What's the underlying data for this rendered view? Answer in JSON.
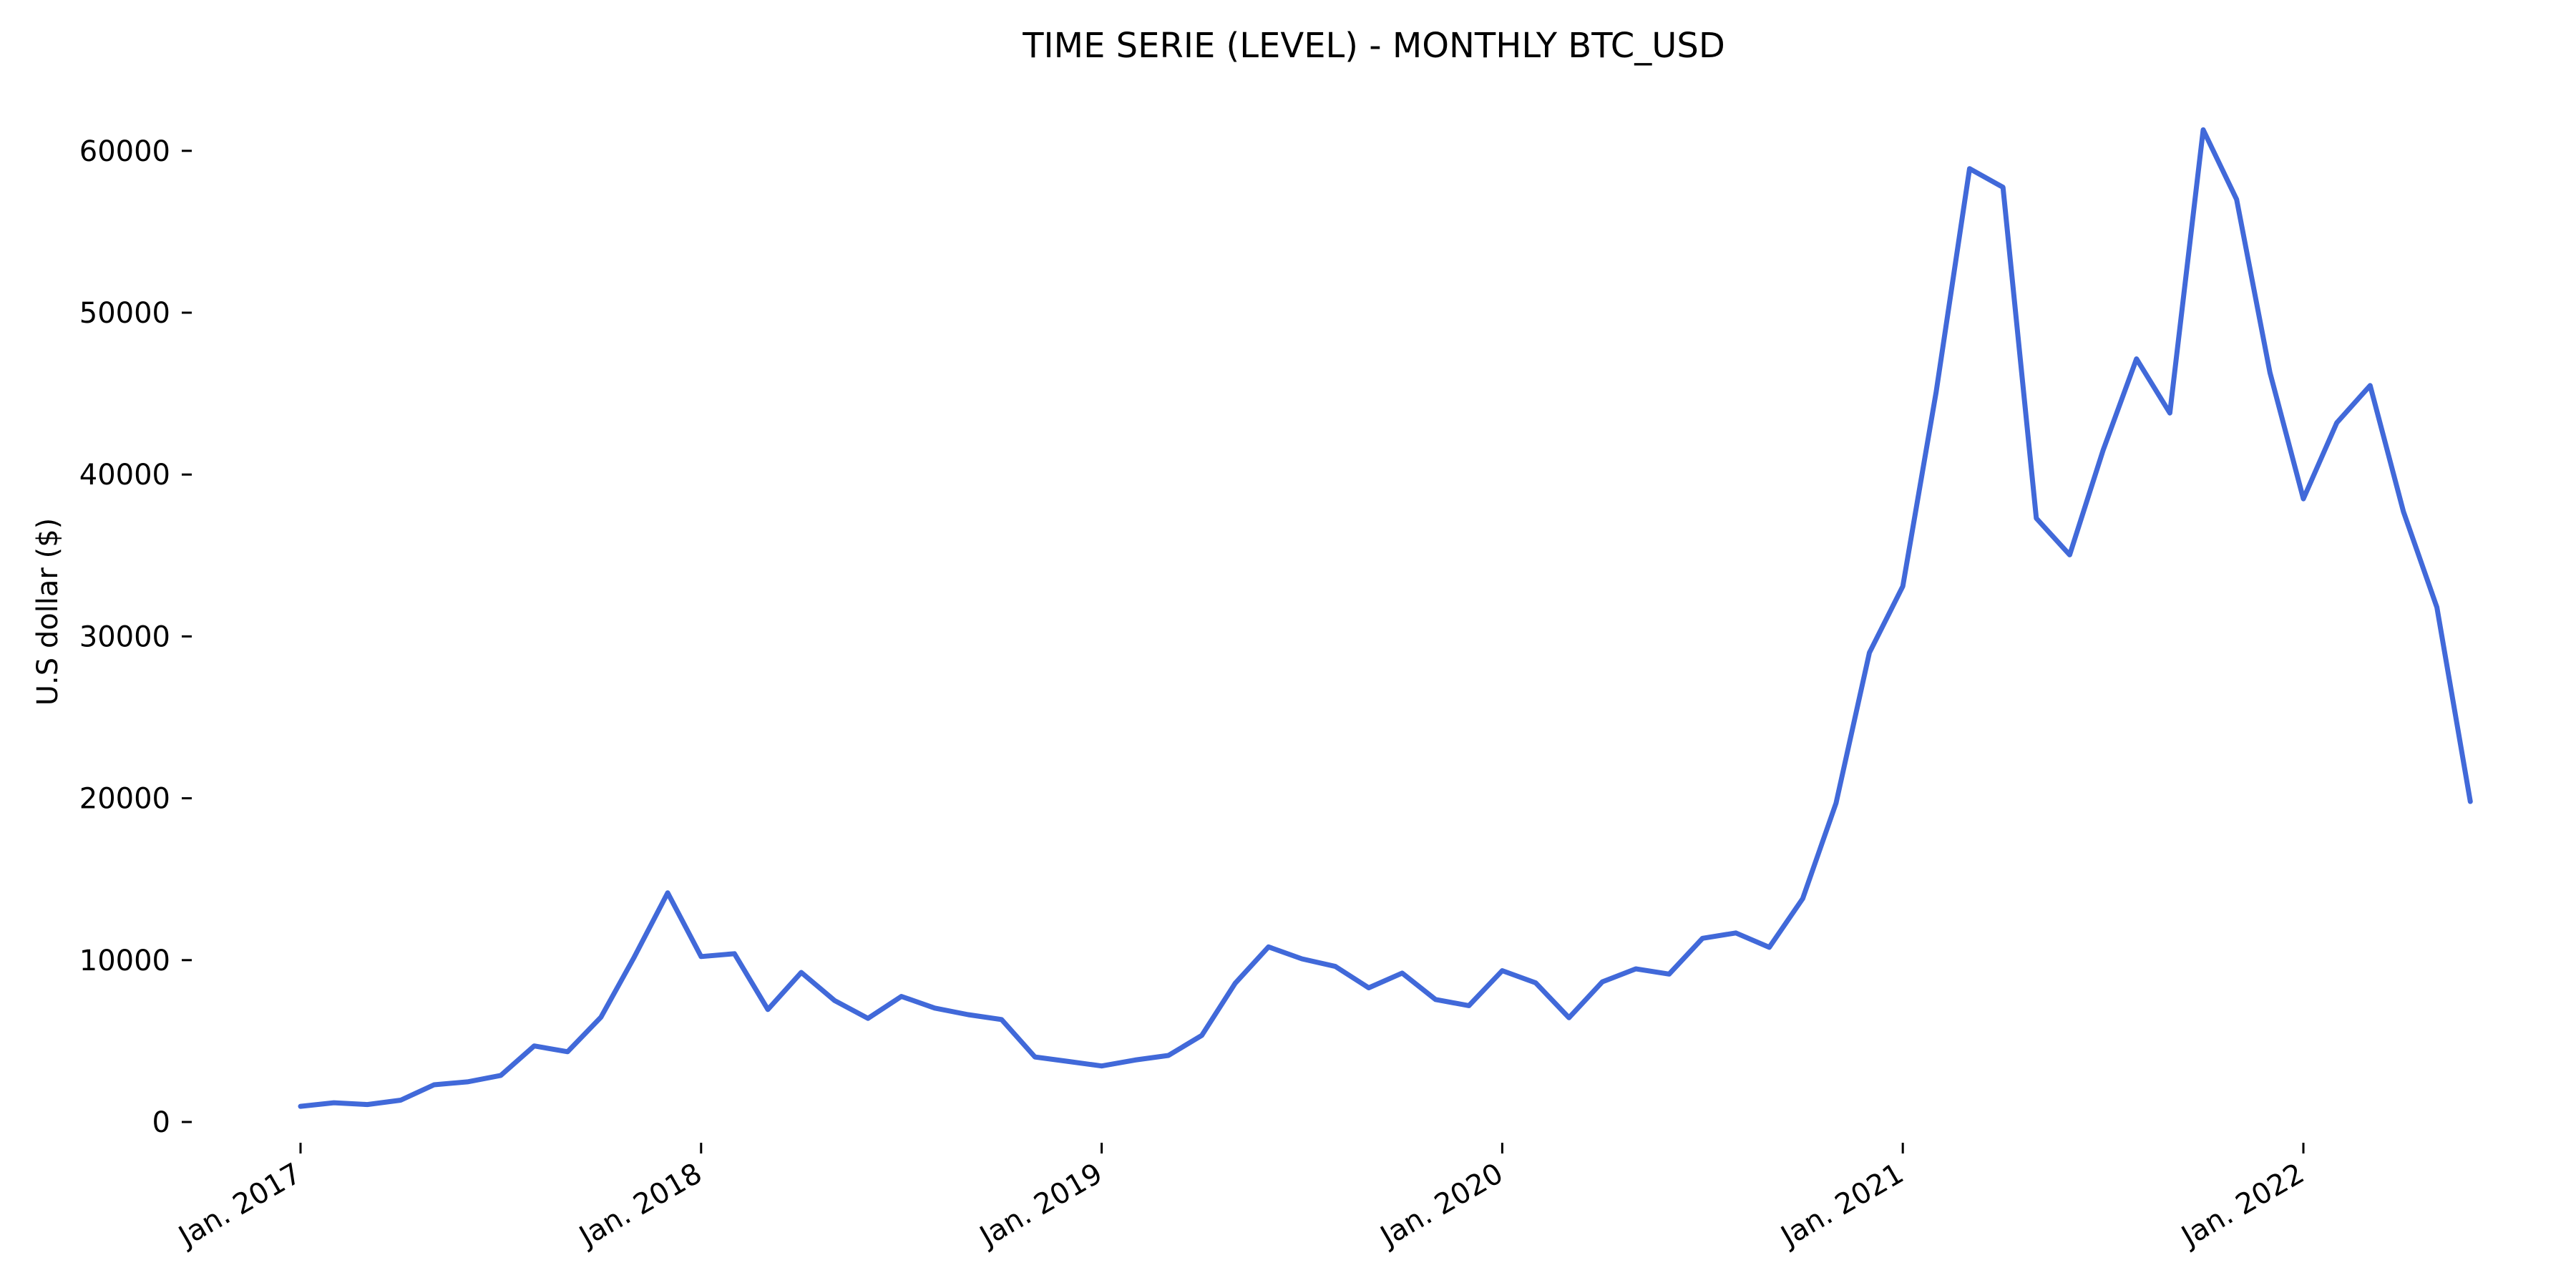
{
  "chart_data": {
    "type": "line",
    "title": "TIME SERIE (LEVEL) - MONTHLY BTC_USD",
    "xlabel": "",
    "ylabel": "U.S dollar ($)",
    "x_start": "2017-01",
    "x": [
      "2017-01",
      "2017-02",
      "2017-03",
      "2017-04",
      "2017-05",
      "2017-06",
      "2017-07",
      "2017-08",
      "2017-09",
      "2017-10",
      "2017-11",
      "2017-12",
      "2018-01",
      "2018-02",
      "2018-03",
      "2018-04",
      "2018-05",
      "2018-06",
      "2018-07",
      "2018-08",
      "2018-09",
      "2018-10",
      "2018-11",
      "2018-12",
      "2019-01",
      "2019-02",
      "2019-03",
      "2019-04",
      "2019-05",
      "2019-06",
      "2019-07",
      "2019-08",
      "2019-09",
      "2019-10",
      "2019-11",
      "2019-12",
      "2020-01",
      "2020-02",
      "2020-03",
      "2020-04",
      "2020-05",
      "2020-06",
      "2020-07",
      "2020-08",
      "2020-09",
      "2020-10",
      "2020-11",
      "2020-12",
      "2021-01",
      "2021-02",
      "2021-03",
      "2021-04",
      "2021-05",
      "2021-06",
      "2021-07",
      "2021-08",
      "2021-09",
      "2021-10",
      "2021-11",
      "2021-12",
      "2022-01",
      "2022-02",
      "2022-03",
      "2022-04",
      "2022-05",
      "2022-06"
    ],
    "series": [
      {
        "name": "",
        "color": "#4169d9",
        "values": [
          970,
          1190,
          1080,
          1350,
          2300,
          2480,
          2880,
          4700,
          4340,
          6470,
          10200,
          14160,
          10220,
          10400,
          6950,
          9240,
          7500,
          6400,
          7760,
          7040,
          6630,
          6330,
          4020,
          3740,
          3460,
          3830,
          4110,
          5350,
          8570,
          10820,
          10080,
          9610,
          8290,
          9200,
          7570,
          7190,
          9350,
          8600,
          6440,
          8660,
          9460,
          9140,
          11350,
          11680,
          10790,
          13800,
          19700,
          28990,
          33100,
          45100,
          58900,
          57750,
          37300,
          35040,
          41500,
          47150,
          43800,
          61300,
          57000,
          46300,
          38500,
          43200,
          45500,
          37700,
          31800,
          19800
        ]
      }
    ],
    "yticks": [
      0,
      10000,
      20000,
      30000,
      40000,
      50000,
      60000
    ],
    "xticks": [
      {
        "x": "2017-01",
        "label": "Jan. 2017"
      },
      {
        "x": "2018-01",
        "label": "Jan. 2018"
      },
      {
        "x": "2019-01",
        "label": "Jan. 2019"
      },
      {
        "x": "2020-01",
        "label": "Jan. 2020"
      },
      {
        "x": "2021-01",
        "label": "Jan. 2021"
      },
      {
        "x": "2022-01",
        "label": "Jan. 2022"
      }
    ],
    "ylim": [
      0,
      61300
    ],
    "grid": false,
    "legend": "none"
  }
}
